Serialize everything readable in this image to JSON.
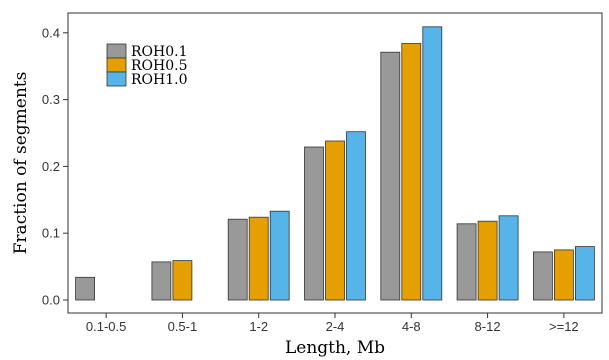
{
  "chart_data": {
    "type": "bar",
    "title": "",
    "xlabel": "Length, Mb",
    "ylabel": "Fraction of segments",
    "categories": [
      "0.1-0.5",
      "0.5-1",
      "1-2",
      "2-4",
      "4-8",
      "8-12",
      ">=12"
    ],
    "series": [
      {
        "name": "ROH0.1",
        "color": "#999999",
        "values": [
          0.034,
          0.057,
          0.121,
          0.229,
          0.371,
          0.114,
          0.072
        ]
      },
      {
        "name": "ROH0.5",
        "color": "#E69F00",
        "values": [
          0.0,
          0.059,
          0.124,
          0.238,
          0.384,
          0.118,
          0.075
        ]
      },
      {
        "name": "ROH1.0",
        "color": "#56B4E9",
        "values": [
          0.0,
          0.0,
          0.133,
          0.252,
          0.409,
          0.126,
          0.08
        ]
      }
    ],
    "ylim": [
      0,
      0.41
    ],
    "yticks": [
      0.0,
      0.1,
      0.2,
      0.3,
      0.4
    ],
    "ytick_labels": [
      "0.0",
      "0.1",
      "0.2",
      "0.3",
      "0.4"
    ],
    "legend_position": "top-left",
    "grid": false
  }
}
